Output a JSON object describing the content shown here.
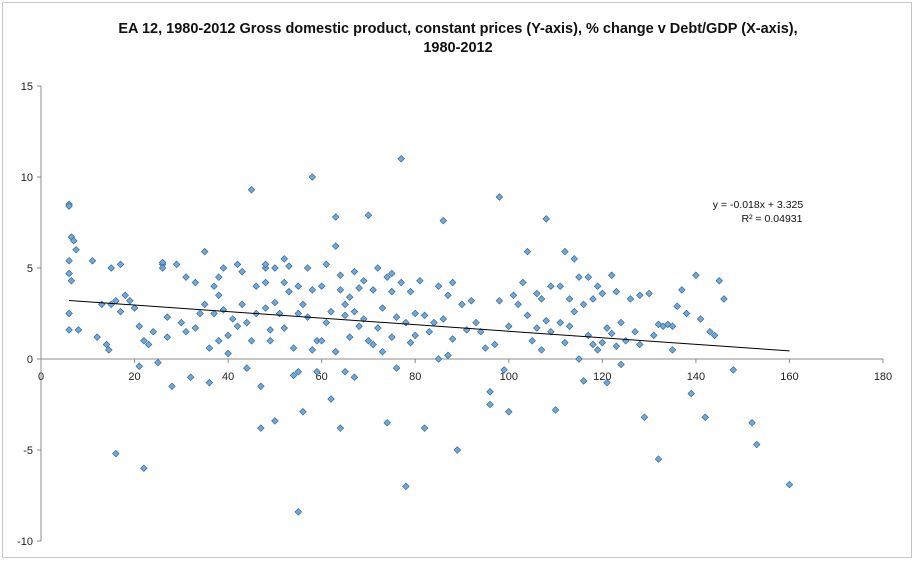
{
  "chart_data": {
    "type": "scatter",
    "title_line1": "EA 12, 1980-2012 Gross domestic product, constant prices (Y-axis), % change v Debt/GDP (X-axis),",
    "title_line2": "1980-2012",
    "xlabel": "",
    "ylabel": "",
    "xlim": [
      0,
      180
    ],
    "ylim": [
      -10,
      15
    ],
    "x_ticks": [
      0,
      20,
      40,
      60,
      80,
      100,
      120,
      140,
      160,
      180
    ],
    "y_ticks": [
      -10,
      -5,
      0,
      5,
      10,
      15
    ],
    "grid": false,
    "marker_color": "#6FA8DC",
    "marker_edge": "#2F5D8A",
    "trendline": {
      "slope": -0.018,
      "intercept": 3.325,
      "x_start": 6,
      "x_end": 160
    },
    "equation_text": "y = -0.018x + 3.325",
    "r2_text": "R² = 0.04931",
    "points": [
      [
        6,
        8.5
      ],
      [
        6,
        8.4
      ],
      [
        6.5,
        6.7
      ],
      [
        7,
        6.5
      ],
      [
        7.5,
        6.0
      ],
      [
        6,
        5.4
      ],
      [
        6,
        4.7
      ],
      [
        6.5,
        4.3
      ],
      [
        6,
        2.5
      ],
      [
        6,
        1.6
      ],
      [
        8,
        1.6
      ],
      [
        11,
        5.4
      ],
      [
        12,
        1.2
      ],
      [
        13,
        3.0
      ],
      [
        14,
        0.8
      ],
      [
        14.5,
        0.5
      ],
      [
        15,
        5.0
      ],
      [
        15,
        3.0
      ],
      [
        16,
        3.2
      ],
      [
        17,
        2.6
      ],
      [
        17,
        5.2
      ],
      [
        16,
        -5.2
      ],
      [
        18,
        3.5
      ],
      [
        19,
        3.2
      ],
      [
        20,
        2.8
      ],
      [
        21,
        -0.4
      ],
      [
        21,
        1.8
      ],
      [
        22,
        1.0
      ],
      [
        23,
        0.8
      ],
      [
        22,
        -6.0
      ],
      [
        24,
        1.5
      ],
      [
        25,
        -0.2
      ],
      [
        26,
        5.2
      ],
      [
        26,
        5.3
      ],
      [
        26,
        5.0
      ],
      [
        27,
        2.3
      ],
      [
        27,
        1.2
      ],
      [
        28,
        -1.5
      ],
      [
        29,
        5.2
      ],
      [
        30,
        2.0
      ],
      [
        31,
        4.5
      ],
      [
        31,
        1.5
      ],
      [
        32,
        -1.0
      ],
      [
        33,
        4.2
      ],
      [
        33,
        1.7
      ],
      [
        34,
        2.5
      ],
      [
        35,
        5.9
      ],
      [
        35,
        3.0
      ],
      [
        36,
        -1.3
      ],
      [
        36,
        0.6
      ],
      [
        37,
        4.0
      ],
      [
        37,
        2.5
      ],
      [
        38,
        4.5
      ],
      [
        38,
        3.5
      ],
      [
        38,
        1.0
      ],
      [
        39,
        5.0
      ],
      [
        39,
        2.7
      ],
      [
        40,
        1.3
      ],
      [
        40,
        0.3
      ],
      [
        41,
        2.2
      ],
      [
        42,
        1.8
      ],
      [
        42,
        5.2
      ],
      [
        43,
        4.8
      ],
      [
        43,
        3.0
      ],
      [
        44,
        2.0
      ],
      [
        44,
        -0.5
      ],
      [
        45,
        9.3
      ],
      [
        45,
        1.0
      ],
      [
        46,
        4.0
      ],
      [
        46,
        2.5
      ],
      [
        47,
        -1.5
      ],
      [
        47,
        -3.8
      ],
      [
        48,
        5.0
      ],
      [
        48,
        5.2
      ],
      [
        48,
        4.2
      ],
      [
        48,
        2.8
      ],
      [
        49,
        1.6
      ],
      [
        49,
        1.0
      ],
      [
        50,
        5.0
      ],
      [
        50,
        3.1
      ],
      [
        50,
        -3.4
      ],
      [
        51,
        2.5
      ],
      [
        52,
        5.5
      ],
      [
        52,
        4.2
      ],
      [
        52,
        1.7
      ],
      [
        53,
        5.1
      ],
      [
        53,
        3.7
      ],
      [
        54,
        0.6
      ],
      [
        54,
        -0.9
      ],
      [
        55,
        -0.7
      ],
      [
        55,
        4.0
      ],
      [
        55,
        2.5
      ],
      [
        55,
        -8.4
      ],
      [
        56,
        3.0
      ],
      [
        56,
        -2.9
      ],
      [
        57,
        5.0
      ],
      [
        57,
        2.3
      ],
      [
        58,
        10.0
      ],
      [
        58,
        3.8
      ],
      [
        58,
        0.5
      ],
      [
        59,
        1.0
      ],
      [
        59,
        -0.7
      ],
      [
        60,
        4.0
      ],
      [
        60,
        1.0
      ],
      [
        61,
        2.0
      ],
      [
        61,
        5.2
      ],
      [
        62,
        2.6
      ],
      [
        62,
        -2.2
      ],
      [
        63,
        7.8
      ],
      [
        63,
        6.2
      ],
      [
        63,
        0.4
      ],
      [
        64,
        4.6
      ],
      [
        64,
        3.8
      ],
      [
        64,
        -3.8
      ],
      [
        65,
        2.4
      ],
      [
        65,
        -0.7
      ],
      [
        65,
        3.0
      ],
      [
        66,
        3.4
      ],
      [
        66,
        1.2
      ],
      [
        67,
        4.8
      ],
      [
        67,
        2.6
      ],
      [
        67,
        -1.0
      ],
      [
        68,
        3.9
      ],
      [
        68,
        1.8
      ],
      [
        69,
        4.3
      ],
      [
        69,
        2.2
      ],
      [
        70,
        7.9
      ],
      [
        70,
        1.0
      ],
      [
        71,
        3.8
      ],
      [
        71,
        0.8
      ],
      [
        72,
        1.7
      ],
      [
        72,
        5.0
      ],
      [
        73,
        2.8
      ],
      [
        73,
        0.4
      ],
      [
        74,
        4.5
      ],
      [
        74,
        -3.5
      ],
      [
        75,
        4.7
      ],
      [
        75,
        3.7
      ],
      [
        75,
        1.2
      ],
      [
        76,
        2.3
      ],
      [
        76,
        -0.5
      ],
      [
        77,
        11.0
      ],
      [
        77,
        4.2
      ],
      [
        78,
        2.0
      ],
      [
        78,
        -7.0
      ],
      [
        79,
        3.7
      ],
      [
        79,
        0.9
      ],
      [
        80,
        2.5
      ],
      [
        80,
        1.3
      ],
      [
        81,
        4.3
      ],
      [
        82,
        2.4
      ],
      [
        82,
        -3.8
      ],
      [
        83,
        1.5
      ],
      [
        84,
        2.0
      ],
      [
        85,
        4.0
      ],
      [
        85,
        0.0
      ],
      [
        86,
        7.6
      ],
      [
        86,
        2.2
      ],
      [
        87,
        3.5
      ],
      [
        87,
        0.2
      ],
      [
        88,
        4.2
      ],
      [
        88,
        1.1
      ],
      [
        89,
        -5.0
      ],
      [
        90,
        3.0
      ],
      [
        91,
        1.6
      ],
      [
        92,
        3.2
      ],
      [
        93,
        2.0
      ],
      [
        94,
        1.5
      ],
      [
        95,
        0.6
      ],
      [
        96,
        -2.5
      ],
      [
        96,
        -1.8
      ],
      [
        97,
        0.8
      ],
      [
        98,
        8.9
      ],
      [
        98,
        3.2
      ],
      [
        99,
        -0.6
      ],
      [
        100,
        1.8
      ],
      [
        100,
        -2.9
      ],
      [
        101,
        3.5
      ],
      [
        102,
        3.0
      ],
      [
        103,
        4.2
      ],
      [
        104,
        5.9
      ],
      [
        104,
        2.4
      ],
      [
        105,
        1.0
      ],
      [
        106,
        3.6
      ],
      [
        106,
        1.7
      ],
      [
        107,
        3.3
      ],
      [
        107,
        0.5
      ],
      [
        108,
        7.7
      ],
      [
        108,
        2.1
      ],
      [
        109,
        4.0
      ],
      [
        109,
        1.5
      ],
      [
        110,
        -2.8
      ],
      [
        111,
        4.0
      ],
      [
        111,
        2.0
      ],
      [
        112,
        5.9
      ],
      [
        112,
        0.9
      ],
      [
        113,
        3.3
      ],
      [
        113,
        1.8
      ],
      [
        114,
        5.5
      ],
      [
        114,
        2.6
      ],
      [
        115,
        4.5
      ],
      [
        115,
        0.0
      ],
      [
        116,
        3.0
      ],
      [
        116,
        -1.2
      ],
      [
        117,
        4.5
      ],
      [
        117,
        1.3
      ],
      [
        118,
        3.3
      ],
      [
        118,
        0.8
      ],
      [
        119,
        4.0
      ],
      [
        119,
        0.5
      ],
      [
        120,
        3.6
      ],
      [
        120,
        0.9
      ],
      [
        121,
        1.7
      ],
      [
        121,
        -1.3
      ],
      [
        122,
        4.6
      ],
      [
        122,
        1.4
      ],
      [
        123,
        3.7
      ],
      [
        123,
        0.7
      ],
      [
        124,
        2.0
      ],
      [
        124,
        -0.3
      ],
      [
        125,
        1.0
      ],
      [
        126,
        3.3
      ],
      [
        127,
        1.5
      ],
      [
        128,
        3.5
      ],
      [
        128,
        0.8
      ],
      [
        129,
        -3.2
      ],
      [
        130,
        3.6
      ],
      [
        131,
        1.3
      ],
      [
        132,
        1.9
      ],
      [
        132,
        -5.5
      ],
      [
        133,
        1.8
      ],
      [
        134,
        1.9
      ],
      [
        135,
        0.5
      ],
      [
        135,
        1.8
      ],
      [
        136,
        2.9
      ],
      [
        137,
        3.8
      ],
      [
        138,
        2.5
      ],
      [
        139,
        -1.9
      ],
      [
        140,
        4.6
      ],
      [
        141,
        2.2
      ],
      [
        142,
        -3.2
      ],
      [
        143,
        1.5
      ],
      [
        144,
        1.3
      ],
      [
        145,
        4.3
      ],
      [
        146,
        3.3
      ],
      [
        148,
        -0.6
      ],
      [
        152,
        -3.5
      ],
      [
        153,
        -4.7
      ],
      [
        160,
        -6.9
      ]
    ]
  }
}
